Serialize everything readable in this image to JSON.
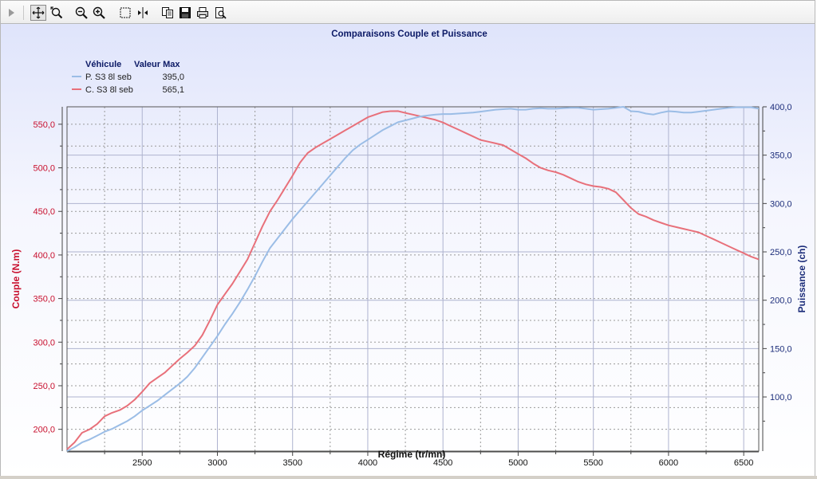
{
  "toolbar": {
    "items": [
      {
        "name": "play-arrow-icon"
      },
      {
        "name": "pan-cross-icon",
        "pressed": true
      },
      {
        "name": "zoom-fit-icon"
      },
      {
        "name": "zoom-out-icon"
      },
      {
        "name": "zoom-in-icon"
      },
      {
        "name": "select-rectangle-icon"
      },
      {
        "name": "cursor-compare-icon"
      },
      {
        "name": "copy-icon"
      },
      {
        "name": "save-disk-icon"
      },
      {
        "name": "print-icon"
      },
      {
        "name": "print-preview-icon"
      }
    ]
  },
  "chart_data": {
    "type": "line",
    "title": "Comparaisons Couple et Puissance",
    "xlabel": "Régime (tr/mn)",
    "ylabel_left": "Couple (N.m)",
    "ylabel_right": "Puissance (ch)",
    "xlim": [
      2000,
      6600
    ],
    "ylim_left": [
      175,
      570
    ],
    "ylim_right": [
      44,
      400
    ],
    "x_ticks": [
      2500,
      3000,
      3500,
      4000,
      4500,
      5000,
      5500,
      6000,
      6500
    ],
    "y_left_ticks": [
      "200,0",
      "250,0",
      "300,0",
      "350,0",
      "400,0",
      "450,0",
      "500,0",
      "550,0"
    ],
    "y_right_ticks": [
      "100,0",
      "150,0",
      "200,0",
      "250,0",
      "300,0",
      "350,0",
      "400,0"
    ],
    "grid": true,
    "colors": {
      "left_axis": "#c8102e",
      "right_axis": "#1c2d7a",
      "couple": "#e8707a",
      "puissance": "#9bbde6",
      "title": "#0c1a66"
    },
    "legend": {
      "header_vehicle": "Véhicule",
      "header_max": "Valeur Max",
      "position": "top-left",
      "entries": [
        {
          "label": "P. S3 8l seb",
          "max": "395,0",
          "color": "#9bbde6"
        },
        {
          "label": "C. S3 8l seb",
          "max": "565,1",
          "color": "#e8707a"
        }
      ]
    },
    "series": [
      {
        "name": "C. S3 8l seb",
        "axis": "left",
        "color": "#e8707a",
        "points": [
          [
            2000,
            177
          ],
          [
            2050,
            185
          ],
          [
            2100,
            196
          ],
          [
            2150,
            200
          ],
          [
            2200,
            206
          ],
          [
            2250,
            215
          ],
          [
            2300,
            219
          ],
          [
            2350,
            222
          ],
          [
            2400,
            227
          ],
          [
            2450,
            234
          ],
          [
            2500,
            243
          ],
          [
            2550,
            253
          ],
          [
            2600,
            259
          ],
          [
            2650,
            265
          ],
          [
            2700,
            273
          ],
          [
            2750,
            281
          ],
          [
            2800,
            288
          ],
          [
            2850,
            296
          ],
          [
            2900,
            308
          ],
          [
            2950,
            325
          ],
          [
            3000,
            343
          ],
          [
            3050,
            355
          ],
          [
            3100,
            367
          ],
          [
            3150,
            381
          ],
          [
            3200,
            395
          ],
          [
            3250,
            414
          ],
          [
            3300,
            433
          ],
          [
            3350,
            450
          ],
          [
            3400,
            463
          ],
          [
            3450,
            477
          ],
          [
            3500,
            491
          ],
          [
            3550,
            506
          ],
          [
            3600,
            517
          ],
          [
            3650,
            523
          ],
          [
            3700,
            528
          ],
          [
            3750,
            533
          ],
          [
            3800,
            538
          ],
          [
            3850,
            543
          ],
          [
            3900,
            548
          ],
          [
            3950,
            553
          ],
          [
            4000,
            558
          ],
          [
            4050,
            561
          ],
          [
            4100,
            564
          ],
          [
            4150,
            565
          ],
          [
            4200,
            565.1
          ],
          [
            4250,
            563
          ],
          [
            4300,
            561
          ],
          [
            4350,
            559
          ],
          [
            4400,
            557
          ],
          [
            4450,
            555
          ],
          [
            4500,
            552
          ],
          [
            4550,
            548
          ],
          [
            4600,
            544
          ],
          [
            4650,
            540
          ],
          [
            4700,
            536
          ],
          [
            4750,
            532
          ],
          [
            4800,
            530
          ],
          [
            4850,
            528
          ],
          [
            4900,
            526
          ],
          [
            4950,
            521
          ],
          [
            5000,
            516
          ],
          [
            5050,
            511
          ],
          [
            5100,
            505
          ],
          [
            5150,
            500
          ],
          [
            5200,
            497
          ],
          [
            5250,
            495
          ],
          [
            5300,
            492
          ],
          [
            5350,
            488
          ],
          [
            5400,
            484
          ],
          [
            5450,
            481
          ],
          [
            5500,
            479
          ],
          [
            5550,
            478
          ],
          [
            5600,
            476
          ],
          [
            5650,
            472
          ],
          [
            5700,
            463
          ],
          [
            5750,
            454
          ],
          [
            5800,
            447
          ],
          [
            5850,
            444
          ],
          [
            5900,
            440
          ],
          [
            5950,
            437
          ],
          [
            6000,
            434
          ],
          [
            6050,
            432
          ],
          [
            6100,
            430
          ],
          [
            6150,
            428
          ],
          [
            6200,
            426
          ],
          [
            6250,
            422
          ],
          [
            6300,
            418
          ],
          [
            6350,
            414
          ],
          [
            6400,
            410
          ],
          [
            6450,
            406
          ],
          [
            6500,
            402
          ],
          [
            6550,
            398
          ],
          [
            6600,
            395
          ]
        ]
      },
      {
        "name": "P. S3 8l seb",
        "axis": "right",
        "color": "#9bbde6",
        "points": [
          [
            2000,
            44
          ],
          [
            2050,
            48
          ],
          [
            2100,
            53
          ],
          [
            2150,
            56
          ],
          [
            2200,
            60
          ],
          [
            2250,
            64
          ],
          [
            2300,
            67
          ],
          [
            2350,
            71
          ],
          [
            2400,
            75
          ],
          [
            2450,
            80
          ],
          [
            2500,
            86
          ],
          [
            2550,
            91
          ],
          [
            2600,
            96
          ],
          [
            2650,
            102
          ],
          [
            2700,
            108
          ],
          [
            2750,
            114
          ],
          [
            2800,
            121
          ],
          [
            2850,
            130
          ],
          [
            2900,
            141
          ],
          [
            2950,
            152
          ],
          [
            3000,
            163
          ],
          [
            3050,
            175
          ],
          [
            3100,
            186
          ],
          [
            3150,
            198
          ],
          [
            3200,
            211
          ],
          [
            3250,
            225
          ],
          [
            3300,
            240
          ],
          [
            3350,
            254
          ],
          [
            3400,
            264
          ],
          [
            3450,
            274
          ],
          [
            3500,
            284
          ],
          [
            3550,
            293
          ],
          [
            3600,
            302
          ],
          [
            3650,
            311
          ],
          [
            3700,
            320
          ],
          [
            3750,
            329
          ],
          [
            3800,
            338
          ],
          [
            3850,
            347
          ],
          [
            3900,
            355
          ],
          [
            3950,
            361
          ],
          [
            4000,
            366
          ],
          [
            4050,
            371
          ],
          [
            4100,
            376
          ],
          [
            4150,
            380
          ],
          [
            4200,
            384
          ],
          [
            4250,
            386
          ],
          [
            4300,
            388
          ],
          [
            4350,
            390
          ],
          [
            4400,
            391
          ],
          [
            4450,
            392
          ],
          [
            4500,
            392.5
          ],
          [
            4550,
            392.5
          ],
          [
            4600,
            393
          ],
          [
            4650,
            393.5
          ],
          [
            4700,
            394
          ],
          [
            4750,
            395
          ],
          [
            4800,
            396
          ],
          [
            4850,
            397
          ],
          [
            4900,
            397.5
          ],
          [
            4950,
            398
          ],
          [
            5000,
            397
          ],
          [
            5050,
            397
          ],
          [
            5100,
            398
          ],
          [
            5150,
            398.5
          ],
          [
            5200,
            398
          ],
          [
            5250,
            398
          ],
          [
            5300,
            398.5
          ],
          [
            5350,
            399
          ],
          [
            5400,
            399
          ],
          [
            5450,
            398
          ],
          [
            5500,
            397
          ],
          [
            5550,
            397.5
          ],
          [
            5600,
            398
          ],
          [
            5650,
            399
          ],
          [
            5700,
            400
          ],
          [
            5750,
            395.5
          ],
          [
            5800,
            395
          ],
          [
            5850,
            393
          ],
          [
            5900,
            392
          ],
          [
            5950,
            394
          ],
          [
            6000,
            395.5
          ],
          [
            6050,
            395
          ],
          [
            6100,
            394
          ],
          [
            6150,
            394
          ],
          [
            6200,
            395
          ],
          [
            6250,
            396
          ],
          [
            6300,
            397
          ],
          [
            6350,
            398
          ],
          [
            6400,
            399
          ],
          [
            6450,
            399.5
          ],
          [
            6500,
            399.5
          ],
          [
            6550,
            399.5
          ],
          [
            6600,
            398
          ]
        ]
      }
    ]
  }
}
